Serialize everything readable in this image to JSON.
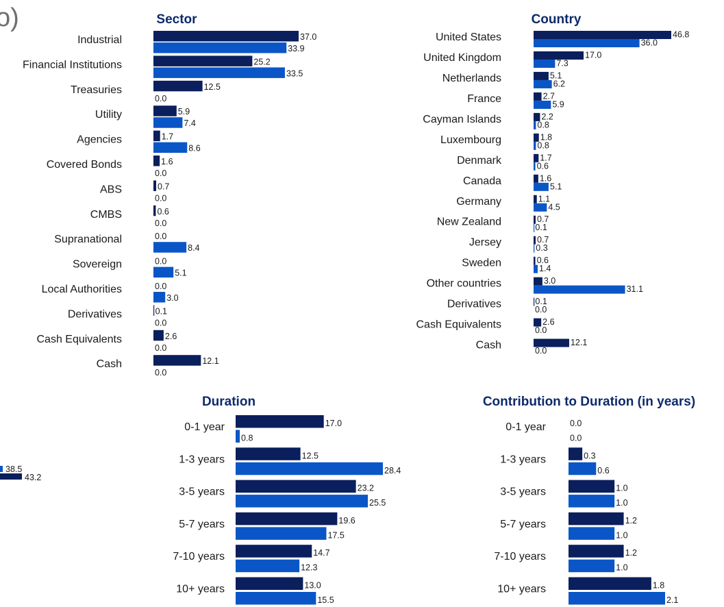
{
  "colors": {
    "series_a": "#0a1f5c",
    "series_b": "#0b56c7"
  },
  "fragments": {
    "top_left_glyph": "o)",
    "side_values": [
      "38.5",
      "43.2"
    ]
  },
  "chart_data": [
    {
      "type": "bar",
      "title": "Sector",
      "categories": [
        "Industrial",
        "Financial Institutions",
        "Treasuries",
        "Utility",
        "Agencies",
        "Covered Bonds",
        "ABS",
        "CMBS",
        "Supranational",
        "Sovereign",
        "Local Authorities",
        "Derivatives",
        "Cash Equivalents",
        "Cash"
      ],
      "series": [
        {
          "values": [
            37.0,
            25.2,
            12.5,
            5.9,
            1.7,
            1.6,
            0.7,
            0.6,
            0.0,
            0.0,
            0.0,
            0.1,
            2.6,
            12.1
          ]
        },
        {
          "values": [
            33.9,
            33.5,
            0.0,
            7.4,
            8.6,
            0.0,
            0.0,
            0.0,
            8.4,
            5.1,
            3.0,
            0.0,
            0.0,
            0.0
          ]
        }
      ],
      "xlim": [
        0,
        37
      ]
    },
    {
      "type": "bar",
      "title": "Country",
      "categories": [
        "United States",
        "United Kingdom",
        "Netherlands",
        "France",
        "Cayman Islands",
        "Luxembourg",
        "Denmark",
        "Canada",
        "Germany",
        "New Zealand",
        "Jersey",
        "Sweden",
        "Other countries",
        "Derivatives",
        "Cash Equivalents",
        "Cash"
      ],
      "series": [
        {
          "values": [
            46.8,
            17.0,
            5.1,
            2.7,
            2.2,
            1.8,
            1.7,
            1.6,
            1.1,
            0.7,
            0.7,
            0.6,
            3.0,
            0.1,
            2.6,
            12.1
          ]
        },
        {
          "values": [
            36.0,
            7.3,
            6.2,
            5.9,
            0.8,
            0.8,
            0.6,
            5.1,
            4.5,
            0.1,
            0.3,
            1.4,
            31.1,
            0.0,
            0.0,
            0.0
          ]
        }
      ],
      "xlim": [
        0,
        46.8
      ]
    },
    {
      "type": "bar",
      "title": "Duration",
      "categories": [
        "0-1 year",
        "1-3 years",
        "3-5 years",
        "5-7 years",
        "7-10 years",
        "10+ years"
      ],
      "series": [
        {
          "values": [
            17.0,
            12.5,
            23.2,
            19.6,
            14.7,
            13.0
          ]
        },
        {
          "values": [
            0.8,
            28.4,
            25.5,
            17.5,
            12.3,
            15.5
          ]
        }
      ],
      "xlim": [
        0,
        28.4
      ]
    },
    {
      "type": "bar",
      "title": "Contribution to Duration (in years)",
      "categories": [
        "0-1 year",
        "1-3 years",
        "3-5 years",
        "5-7 years",
        "7-10 years",
        "10+ years"
      ],
      "series": [
        {
          "values": [
            0.0,
            0.3,
            1.0,
            1.2,
            1.2,
            1.8
          ]
        },
        {
          "values": [
            0.0,
            0.6,
            1.0,
            1.0,
            1.0,
            2.1
          ]
        }
      ],
      "xlim": [
        0,
        2.1
      ]
    }
  ]
}
